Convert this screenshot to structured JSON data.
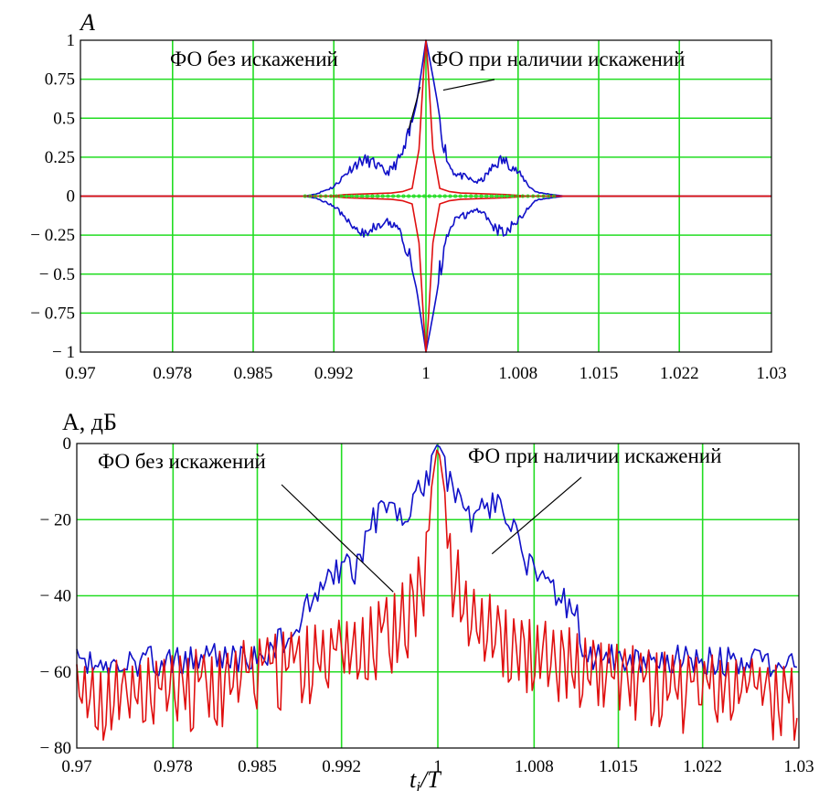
{
  "chart_data": [
    {
      "type": "line",
      "ylabel": "A",
      "xlabel": "",
      "xlim": [
        0.97,
        1.03
      ],
      "ylim": [
        -1,
        1
      ],
      "x_ticks": [
        0.97,
        0.978,
        0.985,
        0.992,
        1,
        1.008,
        1.015,
        1.022,
        1.03
      ],
      "x_tick_labels": [
        "0.97",
        "0.978",
        "0.985",
        "0.992",
        "1",
        "1.008",
        "1.015",
        "1.022",
        "1.03"
      ],
      "y_ticks": [
        1,
        0.75,
        0.5,
        0.25,
        0,
        -0.25,
        -0.5,
        -0.75,
        -1
      ],
      "y_tick_labels": [
        "1",
        "0.75",
        "0.5",
        "0.25",
        "0",
        "− 0.25",
        "− 0.5",
        "− 0.75",
        "− 1"
      ],
      "grid": true,
      "colors": {
        "grid": "#22dd22",
        "distorted": "#1010c8",
        "ideal": "#e01010",
        "frame": "#000000"
      },
      "annotations": [
        {
          "text": "ФО без искажений",
          "points_to": {
            "x": 0.9995,
            "y": 0.7
          }
        },
        {
          "text": "ФО при наличии искажений",
          "points_to": {
            "x": 1.0015,
            "y": 0.68
          }
        }
      ],
      "series": [
        {
          "role": "distorted-upper",
          "color": "#1010c8",
          "points": [
            [
              0.97,
              0
            ],
            [
              0.9895,
              0
            ],
            [
              0.9905,
              0.015
            ],
            [
              0.991,
              0.03
            ],
            [
              0.992,
              0.06
            ],
            [
              0.9925,
              0.1
            ],
            [
              0.993,
              0.14
            ],
            [
              0.9935,
              0.18
            ],
            [
              0.994,
              0.21
            ],
            [
              0.9945,
              0.23
            ],
            [
              0.995,
              0.225
            ],
            [
              0.9955,
              0.21
            ],
            [
              0.996,
              0.18
            ],
            [
              0.9965,
              0.15
            ],
            [
              0.997,
              0.17
            ],
            [
              0.9975,
              0.22
            ],
            [
              0.998,
              0.27
            ],
            [
              0.9985,
              0.38
            ],
            [
              0.9992,
              0.6
            ],
            [
              0.9997,
              0.85
            ],
            [
              1,
              1
            ],
            [
              1.0004,
              0.85
            ],
            [
              1.001,
              0.6
            ],
            [
              1.0015,
              0.35
            ],
            [
              1.002,
              0.2
            ],
            [
              1.0025,
              0.15
            ],
            [
              1.003,
              0.13
            ],
            [
              1.0035,
              0.12
            ],
            [
              1.004,
              0.1
            ],
            [
              1.0045,
              0.09
            ],
            [
              1.005,
              0.11
            ],
            [
              1.0055,
              0.16
            ],
            [
              1.006,
              0.2
            ],
            [
              1.0065,
              0.23
            ],
            [
              1.007,
              0.22
            ],
            [
              1.0075,
              0.19
            ],
            [
              1.008,
              0.15
            ],
            [
              1.0085,
              0.11
            ],
            [
              1.009,
              0.06
            ],
            [
              1.0095,
              0.03
            ],
            [
              1.01,
              0.02
            ],
            [
              1.011,
              0.01
            ],
            [
              1.012,
              0
            ],
            [
              1.03,
              0
            ]
          ]
        },
        {
          "role": "distorted-lower",
          "color": "#1010c8",
          "points": [
            [
              0.97,
              0
            ],
            [
              0.9895,
              0
            ],
            [
              0.9905,
              -0.015
            ],
            [
              0.991,
              -0.03
            ],
            [
              0.992,
              -0.06
            ],
            [
              0.9925,
              -0.1
            ],
            [
              0.993,
              -0.14
            ],
            [
              0.9935,
              -0.18
            ],
            [
              0.994,
              -0.21
            ],
            [
              0.9945,
              -0.23
            ],
            [
              0.995,
              -0.225
            ],
            [
              0.9955,
              -0.21
            ],
            [
              0.996,
              -0.18
            ],
            [
              0.9965,
              -0.15
            ],
            [
              0.997,
              -0.17
            ],
            [
              0.9975,
              -0.22
            ],
            [
              0.998,
              -0.27
            ],
            [
              0.9985,
              -0.38
            ],
            [
              0.9992,
              -0.6
            ],
            [
              0.9997,
              -0.85
            ],
            [
              1,
              -1
            ],
            [
              1.0004,
              -0.85
            ],
            [
              1.001,
              -0.6
            ],
            [
              1.0015,
              -0.35
            ],
            [
              1.002,
              -0.2
            ],
            [
              1.0025,
              -0.15
            ],
            [
              1.003,
              -0.13
            ],
            [
              1.0035,
              -0.12
            ],
            [
              1.004,
              -0.1
            ],
            [
              1.0045,
              -0.09
            ],
            [
              1.005,
              -0.11
            ],
            [
              1.0055,
              -0.16
            ],
            [
              1.006,
              -0.2
            ],
            [
              1.0065,
              -0.23
            ],
            [
              1.007,
              -0.22
            ],
            [
              1.0075,
              -0.19
            ],
            [
              1.008,
              -0.15
            ],
            [
              1.0085,
              -0.11
            ],
            [
              1.009,
              -0.06
            ],
            [
              1.0095,
              -0.03
            ],
            [
              1.01,
              -0.02
            ],
            [
              1.011,
              -0.01
            ],
            [
              1.012,
              0
            ],
            [
              1.03,
              0
            ]
          ]
        },
        {
          "role": "ideal-upper",
          "color": "#e01010",
          "points": [
            [
              0.97,
              0
            ],
            [
              0.9915,
              0
            ],
            [
              0.993,
              0.01
            ],
            [
              0.995,
              0.015
            ],
            [
              0.997,
              0.02
            ],
            [
              0.998,
              0.03
            ],
            [
              0.9988,
              0.05
            ],
            [
              0.9994,
              0.3
            ],
            [
              0.9998,
              0.8
            ],
            [
              1,
              1
            ],
            [
              1.0002,
              0.8
            ],
            [
              1.0006,
              0.3
            ],
            [
              1.0012,
              0.05
            ],
            [
              1.002,
              0.03
            ],
            [
              1.003,
              0.02
            ],
            [
              1.005,
              0.015
            ],
            [
              1.007,
              0.01
            ],
            [
              1.009,
              0
            ],
            [
              1.03,
              0
            ]
          ]
        },
        {
          "role": "ideal-lower",
          "color": "#e01010",
          "points": [
            [
              0.97,
              0
            ],
            [
              0.9915,
              0
            ],
            [
              0.993,
              -0.01
            ],
            [
              0.995,
              -0.015
            ],
            [
              0.997,
              -0.02
            ],
            [
              0.998,
              -0.03
            ],
            [
              0.9988,
              -0.05
            ],
            [
              0.9994,
              -0.3
            ],
            [
              0.9998,
              -0.8
            ],
            [
              1,
              -1
            ],
            [
              1.0002,
              -0.8
            ],
            [
              1.0006,
              -0.3
            ],
            [
              1.0012,
              -0.05
            ],
            [
              1.002,
              -0.03
            ],
            [
              1.003,
              -0.02
            ],
            [
              1.005,
              -0.015
            ],
            [
              1.007,
              -0.01
            ],
            [
              1.009,
              0
            ],
            [
              1.03,
              0
            ]
          ]
        }
      ]
    },
    {
      "type": "line",
      "ylabel": "A, дБ",
      "xlabel": "t_i/T",
      "xlabel_parts": {
        "main": "t",
        "sub": "i",
        "rest": "/T"
      },
      "xlim": [
        0.97,
        1.03
      ],
      "ylim": [
        -80,
        0
      ],
      "x_ticks": [
        0.97,
        0.978,
        0.985,
        0.992,
        1,
        1.008,
        1.015,
        1.022,
        1.03
      ],
      "x_tick_labels": [
        "0.97",
        "0.978",
        "0.985",
        "0.992",
        "1",
        "1.008",
        "1.015",
        "1.022",
        "1.03"
      ],
      "y_ticks": [
        0,
        -20,
        -40,
        -60,
        -80
      ],
      "y_tick_labels": [
        "0",
        "− 20",
        "− 40",
        "− 60",
        "− 80"
      ],
      "grid": true,
      "colors": {
        "grid": "#22dd22",
        "distorted": "#1010c8",
        "ideal": "#e01010",
        "frame": "#000000"
      },
      "annotations": [
        {
          "text": "ФО без искажений",
          "points_to": {
            "x": 0.9963,
            "y": -39
          }
        },
        {
          "text": "ФО при наличии искажений",
          "points_to": {
            "x": 1.0045,
            "y": -29
          }
        }
      ],
      "series": [
        {
          "role": "distorted",
          "color": "#1010c8",
          "envelope": [
            [
              0.97,
              -54
            ],
            [
              0.985,
              -52
            ],
            [
              0.987,
              -48
            ],
            [
              0.9885,
              -44
            ],
            [
              0.989,
              -38
            ],
            [
              0.99,
              -34
            ],
            [
              0.991,
              -29
            ],
            [
              0.9925,
              -29
            ],
            [
              0.993,
              -32
            ],
            [
              0.9935,
              -27
            ],
            [
              0.994,
              -20
            ],
            [
              0.995,
              -15
            ],
            [
              0.996,
              -14
            ],
            [
              0.9975,
              -15
            ],
            [
              0.998,
              -11
            ],
            [
              0.999,
              -6
            ],
            [
              1,
              0
            ],
            [
              1.001,
              -6
            ],
            [
              1.002,
              -11
            ],
            [
              1.0025,
              -15
            ],
            [
              1.003,
              -16
            ],
            [
              1.004,
              -13
            ],
            [
              1.005,
              -12
            ],
            [
              1.006,
              -16
            ],
            [
              1.007,
              -26
            ],
            [
              1.008,
              -30
            ],
            [
              1.009,
              -32
            ],
            [
              1.01,
              -36
            ],
            [
              1.0115,
              -40
            ],
            [
              1.012,
              -50
            ],
            [
              1.013,
              -52
            ],
            [
              1.03,
              -54
            ]
          ],
          "noise_depth": 8
        },
        {
          "role": "ideal",
          "color": "#e01010",
          "envelope": [
            [
              0.97,
              -58
            ],
            [
              0.98,
              -54
            ],
            [
              0.985,
              -51
            ],
            [
              0.99,
              -47
            ],
            [
              0.9935,
              -44
            ],
            [
              0.9955,
              -40
            ],
            [
              0.9975,
              -35
            ],
            [
              0.999,
              -22
            ],
            [
              1,
              0
            ],
            [
              1.001,
              -22
            ],
            [
              1.0025,
              -35
            ],
            [
              1.0045,
              -40
            ],
            [
              1.0065,
              -44
            ],
            [
              1.01,
              -47
            ],
            [
              1.015,
              -51
            ],
            [
              1.02,
              -54
            ],
            [
              1.03,
              -58
            ]
          ],
          "noise_depth": 16
        }
      ]
    }
  ]
}
